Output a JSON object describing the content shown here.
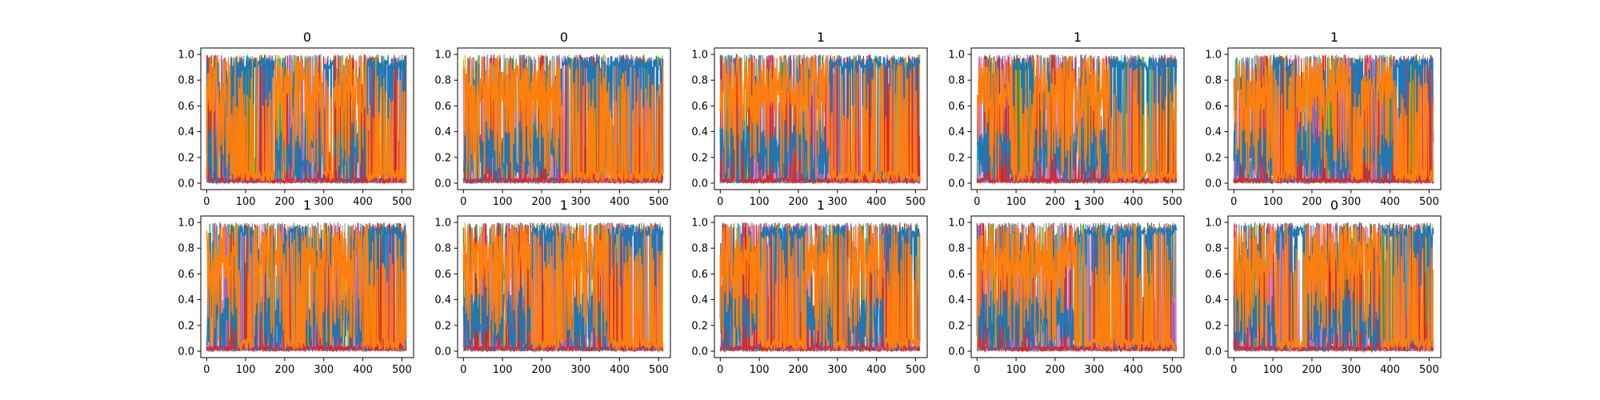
{
  "chart_data": [
    {
      "type": "line",
      "title": "0",
      "xlim": [
        -15,
        530
      ],
      "ylim": [
        -0.05,
        1.05
      ],
      "xticks": [
        0,
        100,
        200,
        300,
        400,
        500
      ],
      "yticks": [
        0.0,
        0.2,
        0.4,
        0.6,
        0.8,
        1.0
      ],
      "n_points": 512,
      "series": [
        {
          "dominant_segments": [
            [
              0,
              60,
              1
            ],
            [
              60,
              175,
              0
            ],
            [
              175,
              300,
              1
            ],
            [
              300,
              330,
              0
            ],
            [
              330,
              410,
              1
            ],
            [
              410,
              512,
              0
            ]
          ]
        }
      ]
    },
    {
      "type": "line",
      "title": "0",
      "xlim": [
        -15,
        530
      ],
      "ylim": [
        -0.05,
        1.05
      ],
      "xticks": [
        0,
        100,
        200,
        300,
        400,
        500
      ],
      "yticks": [
        0.0,
        0.2,
        0.4,
        0.6,
        0.8,
        1.0
      ],
      "n_points": 512,
      "series": [
        {
          "dominant_segments": [
            [
              0,
              250,
              1
            ],
            [
              250,
              512,
              0
            ]
          ]
        }
      ]
    },
    {
      "type": "line",
      "title": "1",
      "xlim": [
        -15,
        530
      ],
      "ylim": [
        -0.05,
        1.05
      ],
      "xticks": [
        0,
        100,
        200,
        300,
        400,
        500
      ],
      "yticks": [
        0.0,
        0.2,
        0.4,
        0.6,
        0.8,
        1.0
      ],
      "n_points": 512,
      "series": [
        {
          "dominant_segments": [
            [
              0,
              280,
              1
            ],
            [
              280,
              512,
              0
            ]
          ]
        }
      ]
    },
    {
      "type": "line",
      "title": "1",
      "xlim": [
        -15,
        530
      ],
      "ylim": [
        -0.05,
        1.05
      ],
      "xticks": [
        0,
        100,
        200,
        300,
        400,
        500
      ],
      "yticks": [
        0.0,
        0.2,
        0.4,
        0.6,
        0.8,
        1.0
      ],
      "n_points": 512,
      "series": [
        {
          "dominant_segments": [
            [
              0,
              90,
              1
            ],
            [
              90,
              140,
              0
            ],
            [
              140,
              340,
              1
            ],
            [
              340,
              512,
              0
            ]
          ]
        }
      ]
    },
    {
      "type": "line",
      "title": "1",
      "xlim": [
        -15,
        530
      ],
      "ylim": [
        -0.05,
        1.05
      ],
      "xticks": [
        0,
        100,
        200,
        300,
        400,
        500
      ],
      "yticks": [
        0.0,
        0.2,
        0.4,
        0.6,
        0.8,
        1.0
      ],
      "n_points": 512,
      "series": [
        {
          "dominant_segments": [
            [
              0,
              100,
              1
            ],
            [
              100,
              160,
              0
            ],
            [
              160,
              300,
              1
            ],
            [
              300,
              330,
              0
            ],
            [
              330,
              410,
              1
            ],
            [
              410,
              512,
              0
            ]
          ]
        }
      ]
    },
    {
      "type": "line",
      "title": "1",
      "xlim": [
        -15,
        530
      ],
      "ylim": [
        -0.05,
        1.05
      ],
      "xticks": [
        0,
        100,
        200,
        300,
        400,
        500
      ],
      "yticks": [
        0.0,
        0.2,
        0.4,
        0.6,
        0.8,
        1.0
      ],
      "n_points": 512,
      "series": [
        {
          "dominant_segments": [
            [
              0,
              80,
              1
            ],
            [
              80,
              120,
              0
            ],
            [
              120,
              200,
              1
            ],
            [
              200,
              250,
              0
            ],
            [
              250,
              400,
              1
            ],
            [
              400,
              512,
              0
            ]
          ]
        }
      ]
    },
    {
      "type": "line",
      "title": "1",
      "xlim": [
        -15,
        530
      ],
      "ylim": [
        -0.05,
        1.05
      ],
      "xticks": [
        0,
        100,
        200,
        300,
        400,
        500
      ],
      "yticks": [
        0.0,
        0.2,
        0.4,
        0.6,
        0.8,
        1.0
      ],
      "n_points": 512,
      "series": [
        {
          "dominant_segments": [
            [
              0,
              175,
              1
            ],
            [
              175,
              260,
              0
            ],
            [
              260,
              370,
              1
            ],
            [
              370,
              512,
              0
            ]
          ]
        }
      ]
    },
    {
      "type": "line",
      "title": "1",
      "xlim": [
        -15,
        530
      ],
      "ylim": [
        -0.05,
        1.05
      ],
      "xticks": [
        0,
        100,
        200,
        300,
        400,
        500
      ],
      "yticks": [
        0.0,
        0.2,
        0.4,
        0.6,
        0.8,
        1.0
      ],
      "n_points": 512,
      "series": [
        {
          "dominant_segments": [
            [
              0,
              100,
              1
            ],
            [
              100,
              220,
              0
            ],
            [
              220,
              290,
              1
            ],
            [
              290,
              320,
              0
            ],
            [
              320,
              420,
              1
            ],
            [
              420,
              512,
              0
            ]
          ]
        }
      ]
    },
    {
      "type": "line",
      "title": "1",
      "xlim": [
        -15,
        530
      ],
      "ylim": [
        -0.05,
        1.05
      ],
      "xticks": [
        0,
        100,
        200,
        300,
        400,
        500
      ],
      "yticks": [
        0.0,
        0.2,
        0.4,
        0.6,
        0.8,
        1.0
      ],
      "n_points": 512,
      "series": [
        {
          "dominant_segments": [
            [
              0,
              250,
              1
            ],
            [
              250,
              512,
              0
            ]
          ]
        }
      ]
    },
    {
      "type": "line",
      "title": "0",
      "xlim": [
        -15,
        530
      ],
      "ylim": [
        -0.05,
        1.05
      ],
      "xticks": [
        0,
        100,
        200,
        300,
        400,
        500
      ],
      "yticks": [
        0.0,
        0.2,
        0.4,
        0.6,
        0.8,
        1.0
      ],
      "n_points": 512,
      "series": [
        {
          "dominant_segments": [
            [
              0,
              110,
              1
            ],
            [
              110,
              190,
              0
            ],
            [
              190,
              380,
              1
            ],
            [
              380,
              512,
              0
            ]
          ]
        }
      ]
    }
  ],
  "colors": {
    "blue": "#1f77b4",
    "orange": "#ff7f0e",
    "cyan": "#17becf",
    "olive": "#bcbd22",
    "green": "#2ca02c",
    "pink": "#e377c2",
    "purple": "#9467bd",
    "red": "#d62728",
    "grey": "#7f7f7f",
    "brown": "#8c564b"
  }
}
